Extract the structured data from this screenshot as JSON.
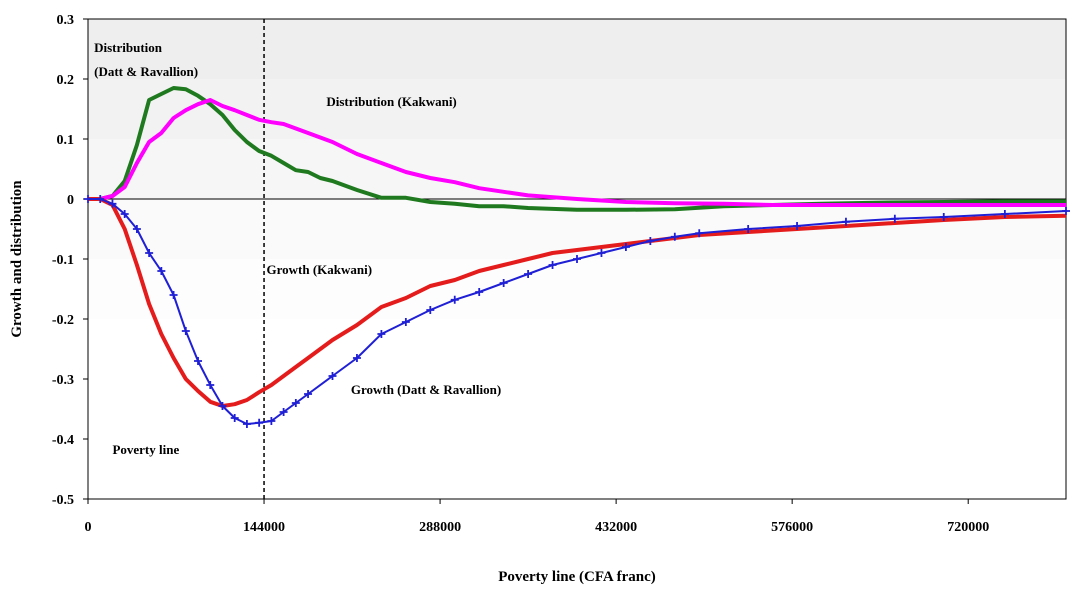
{
  "chart_data": {
    "type": "line",
    "xlabel": "Poverty line (CFA franc)",
    "ylabel": "Growth and distribution",
    "xlim": [
      0,
      800000
    ],
    "ylim": [
      -0.5,
      0.3
    ],
    "x_ticks": [
      "0",
      "144000",
      "288000",
      "432000",
      "576000",
      "720000"
    ],
    "x_tick_values": [
      0,
      144000,
      288000,
      432000,
      576000,
      720000
    ],
    "y_ticks": [
      "0.3",
      "0.2",
      "0.1",
      "0",
      "-0.1",
      "-0.2",
      "-0.3",
      "-0.4",
      "-0.5"
    ],
    "y_tick_values": [
      0.3,
      0.2,
      0.1,
      0,
      -0.1,
      -0.2,
      -0.3,
      -0.4,
      -0.5
    ],
    "grid": false,
    "background_bands": true,
    "reference_line_x": 144000,
    "annotations": [
      {
        "text": "Distribution",
        "x": 5000,
        "y": 0.245
      },
      {
        "text": "(Datt & Ravallion)",
        "x": 5000,
        "y": 0.205
      },
      {
        "text": "Distribution (Kakwani)",
        "x": 195000,
        "y": 0.155
      },
      {
        "text": "Growth (Kakwani)",
        "x": 146000,
        "y": -0.125
      },
      {
        "text": "Growth (Datt & Ravallion)",
        "x": 215000,
        "y": -0.325
      },
      {
        "text": "Poverty line",
        "x": 20000,
        "y": -0.425
      }
    ],
    "series": [
      {
        "color": "#1f7a1f",
        "marker": "none",
        "x": [
          0,
          10000,
          20000,
          30000,
          40000,
          50000,
          60000,
          70000,
          80000,
          90000,
          100000,
          110000,
          120000,
          130000,
          140000,
          150000,
          160000,
          170000,
          180000,
          190000,
          200000,
          220000,
          240000,
          260000,
          280000,
          300000,
          320000,
          340000,
          360000,
          400000,
          440000,
          480000,
          520000,
          560000,
          600000,
          650000,
          700000,
          750000,
          800000
        ],
        "y": [
          0,
          0,
          0.005,
          0.03,
          0.09,
          0.165,
          0.175,
          0.185,
          0.183,
          0.172,
          0.158,
          0.14,
          0.115,
          0.095,
          0.08,
          0.072,
          0.06,
          0.048,
          0.045,
          0.035,
          0.03,
          0.015,
          0.002,
          0.002,
          -0.005,
          -0.008,
          -0.012,
          -0.012,
          -0.015,
          -0.018,
          -0.018,
          -0.017,
          -0.012,
          -0.01,
          -0.008,
          -0.006,
          -0.005,
          -0.004,
          -0.004
        ]
      },
      {
        "color": "#ff00ff",
        "marker": "none",
        "x": [
          0,
          10000,
          20000,
          30000,
          40000,
          50000,
          60000,
          70000,
          80000,
          90000,
          100000,
          110000,
          120000,
          130000,
          140000,
          150000,
          160000,
          180000,
          200000,
          220000,
          240000,
          260000,
          280000,
          300000,
          320000,
          340000,
          360000,
          400000,
          440000,
          480000,
          520000,
          560000,
          600000,
          650000,
          700000,
          750000,
          800000
        ],
        "y": [
          0,
          0,
          0.005,
          0.02,
          0.06,
          0.095,
          0.11,
          0.135,
          0.148,
          0.158,
          0.165,
          0.155,
          0.148,
          0.14,
          0.132,
          0.128,
          0.125,
          0.11,
          0.095,
          0.075,
          0.06,
          0.045,
          0.035,
          0.028,
          0.018,
          0.012,
          0.006,
          0,
          -0.005,
          -0.007,
          -0.008,
          -0.01,
          -0.01,
          -0.01,
          -0.01,
          -0.01,
          -0.01
        ]
      },
      {
        "color": "#e51c1c",
        "marker": "none",
        "x": [
          0,
          10000,
          20000,
          30000,
          40000,
          50000,
          60000,
          70000,
          80000,
          90000,
          100000,
          110000,
          120000,
          130000,
          140000,
          150000,
          160000,
          170000,
          180000,
          200000,
          220000,
          240000,
          260000,
          280000,
          300000,
          320000,
          340000,
          360000,
          380000,
          400000,
          420000,
          440000,
          460000,
          480000,
          500000,
          540000,
          580000,
          620000,
          660000,
          700000,
          750000,
          800000
        ],
        "y": [
          0,
          0,
          -0.01,
          -0.05,
          -0.11,
          -0.175,
          -0.225,
          -0.265,
          -0.3,
          -0.32,
          -0.338,
          -0.345,
          -0.342,
          -0.335,
          -0.322,
          -0.31,
          -0.295,
          -0.28,
          -0.265,
          -0.235,
          -0.21,
          -0.18,
          -0.165,
          -0.145,
          -0.135,
          -0.12,
          -0.11,
          -0.1,
          -0.09,
          -0.085,
          -0.08,
          -0.075,
          -0.07,
          -0.065,
          -0.06,
          -0.055,
          -0.05,
          -0.045,
          -0.04,
          -0.035,
          -0.03,
          -0.028
        ]
      },
      {
        "color": "#1f1fd6",
        "marker": "plus",
        "x": [
          0,
          10000,
          20000,
          30000,
          40000,
          50000,
          60000,
          70000,
          80000,
          90000,
          100000,
          110000,
          120000,
          130000,
          140000,
          150000,
          160000,
          170000,
          180000,
          200000,
          220000,
          240000,
          260000,
          280000,
          300000,
          320000,
          340000,
          360000,
          380000,
          400000,
          420000,
          440000,
          460000,
          480000,
          500000,
          540000,
          580000,
          620000,
          660000,
          700000,
          750000,
          800000
        ],
        "y": [
          0,
          0,
          -0.008,
          -0.025,
          -0.05,
          -0.09,
          -0.12,
          -0.16,
          -0.22,
          -0.27,
          -0.31,
          -0.345,
          -0.365,
          -0.375,
          -0.373,
          -0.37,
          -0.355,
          -0.34,
          -0.325,
          -0.295,
          -0.265,
          -0.225,
          -0.205,
          -0.185,
          -0.168,
          -0.155,
          -0.14,
          -0.125,
          -0.11,
          -0.1,
          -0.09,
          -0.08,
          -0.07,
          -0.063,
          -0.057,
          -0.05,
          -0.045,
          -0.038,
          -0.033,
          -0.03,
          -0.025,
          -0.02
        ]
      }
    ]
  }
}
